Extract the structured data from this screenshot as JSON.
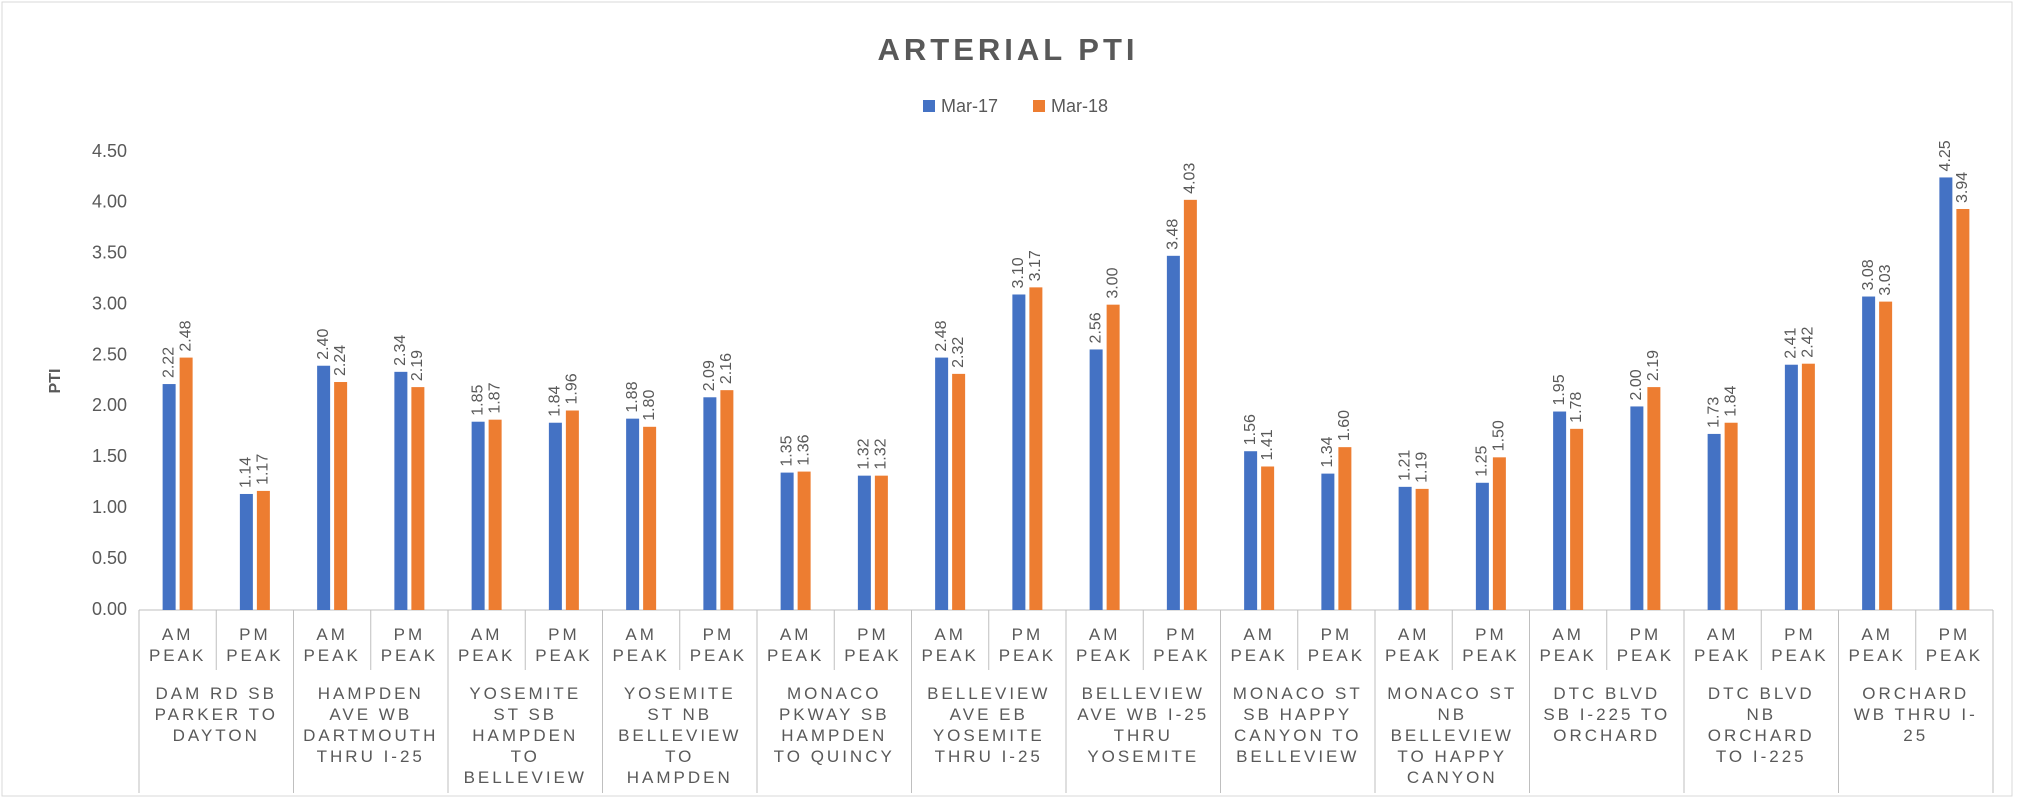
{
  "chart_data": {
    "type": "bar",
    "title": "ARTERIAL PTI",
    "y_label": "PTI",
    "categories": [
      "AM PEAK",
      "PM PEAK",
      "AM PEAK",
      "PM PEAK",
      "AM PEAK",
      "PM PEAK",
      "AM PEAK",
      "PM PEAK",
      "AM PEAK",
      "PM PEAK",
      "AM PEAK",
      "PM PEAK",
      "AM PEAK",
      "PM PEAK",
      "AM PEAK",
      "PM PEAK",
      "AM PEAK",
      "PM PEAK",
      "AM PEAK",
      "PM PEAK",
      "AM PEAK",
      "PM PEAK",
      "AM PEAK",
      "PM PEAK"
    ],
    "groups": [
      "DAM RD SB PARKER TO DAYTON",
      "HAMPDEN AVE WB DARTMOUTH THRU I-25",
      "YOSEMITE ST SB HAMPDEN TO BELLEVIEW",
      "YOSEMITE ST NB BELLEVIEW TO HAMPDEN",
      "MONACO PKWAY SB HAMPDEN TO QUINCY",
      "BELLEVIEW AVE EB YOSEMITE THRU I-25",
      "BELLEVIEW AVE WB I-25 THRU YOSEMITE",
      "MONACO ST SB HAPPY CANYON TO BELLEVIEW",
      "MONACO ST NB BELLEVIEW TO HAPPY CANYON",
      "DTC BLVD SB I-225 TO ORCHARD",
      "DTC BLVD NB ORCHARD TO I-225",
      "ORCHARD WB THRU I-25"
    ],
    "series": [
      {
        "name": "Mar-17",
        "color": "#4472c4",
        "values": [
          2.22,
          1.14,
          2.4,
          2.34,
          1.85,
          1.84,
          1.88,
          2.09,
          1.35,
          1.32,
          2.48,
          3.1,
          2.56,
          3.48,
          1.56,
          1.34,
          1.21,
          1.25,
          1.95,
          2.0,
          1.73,
          2.41,
          3.08,
          4.25
        ],
        "value_labels": [
          "2.22",
          "1.14",
          "2.40",
          "2.34",
          "1.85",
          "1.84",
          "1.88",
          "2.09",
          "1.35",
          "1.32",
          "2.48",
          "3.10",
          "2.56",
          "3.48",
          "1.56",
          "1.34",
          "1.21",
          "1.25",
          "1.95",
          "2.00",
          "1.73",
          "2.41",
          "3.08",
          "4.25"
        ]
      },
      {
        "name": "Mar-18",
        "color": "#ed7d31",
        "values": [
          2.48,
          1.17,
          2.24,
          2.19,
          1.87,
          1.96,
          1.8,
          2.16,
          1.36,
          1.32,
          2.32,
          3.17,
          3.0,
          4.03,
          1.41,
          1.6,
          1.19,
          1.5,
          1.78,
          2.19,
          1.84,
          2.42,
          3.03,
          3.94
        ],
        "value_labels": [
          "2.48",
          "1.17",
          "2.24",
          "2.19",
          "1.87",
          "1.96",
          "1.80",
          "2.16",
          "1.36",
          "1.32",
          "2.32",
          "3.17",
          "3.00",
          "4.03",
          "1.41",
          "1.60",
          "1.19",
          "1.50",
          "1.78",
          "2.19",
          "1.84",
          "2.42",
          "3.03",
          "3.94"
        ]
      }
    ],
    "ylim": [
      0,
      4.5
    ],
    "yticks": [
      {
        "value": 0,
        "label": "0.00"
      },
      {
        "value": 0.5,
        "label": "0.50"
      },
      {
        "value": 1,
        "label": "1.00"
      },
      {
        "value": 1.5,
        "label": "1.50"
      },
      {
        "value": 2,
        "label": "2.00"
      },
      {
        "value": 2.5,
        "label": "2.50"
      },
      {
        "value": 3,
        "label": "3.00"
      },
      {
        "value": 3.5,
        "label": "3.50"
      },
      {
        "value": 4,
        "label": "4.00"
      },
      {
        "value": 4.5,
        "label": "4.50"
      }
    ],
    "grid": false,
    "legend": "top"
  }
}
